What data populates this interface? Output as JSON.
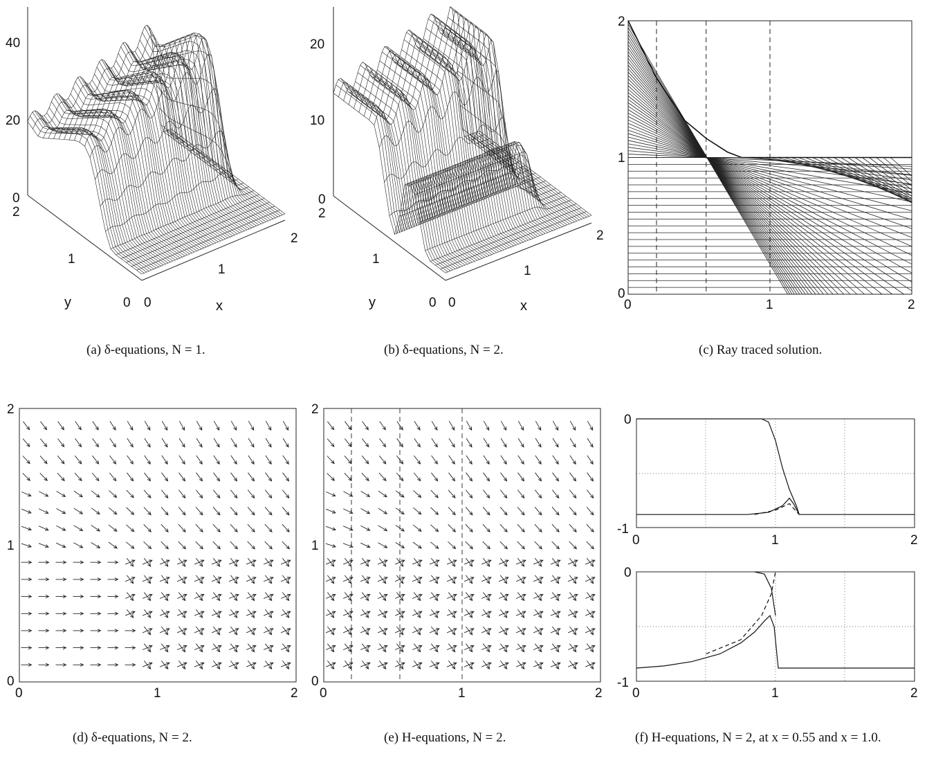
{
  "captions": {
    "a": "(a) δ-equations, N = 1.",
    "b": "(b) δ-equations, N = 2.",
    "c": "(c) Ray traced solution.",
    "d": "(d) δ-equations, N = 2.",
    "e": "(e) H-equations, N = 2.",
    "f": "(f) H-equations, N = 2, at x = 0.55 and x = 1.0."
  },
  "chart_data": [
    {
      "id": "a",
      "type": "surface",
      "xlabel": "x",
      "ylabel": "y",
      "xticks": [
        "0",
        "1",
        "2"
      ],
      "yticks": [
        "0",
        "1",
        "2"
      ],
      "zticks": [
        "0",
        "20",
        "40"
      ],
      "zlim": [
        0,
        45
      ],
      "peak": 38
    },
    {
      "id": "b",
      "type": "surface",
      "xlabel": "x",
      "ylabel": "y",
      "xticks": [
        "0",
        "1",
        "2"
      ],
      "yticks": [
        "0",
        "1",
        "2"
      ],
      "zticks": [
        "0",
        "10",
        "20"
      ],
      "zlim": [
        0,
        25
      ],
      "peak": 22
    },
    {
      "id": "c",
      "type": "line",
      "xlim": [
        0,
        2
      ],
      "ylim": [
        0,
        2
      ],
      "xticks": [
        "0",
        "1",
        "2"
      ],
      "yticks": [
        "0",
        "1",
        "2"
      ],
      "dashed_x": [
        0.2,
        0.55,
        1.0
      ],
      "series": [
        {
          "points": [
            [
              0,
              2
            ],
            [
              0.2,
              1.58
            ],
            [
              0.4,
              1.27
            ],
            [
              0.55,
              1.14
            ],
            [
              0.7,
              1.04
            ],
            [
              0.8,
              1.0
            ],
            [
              2,
              1.0
            ]
          ]
        }
      ]
    },
    {
      "id": "d",
      "type": "quiver",
      "xlim": [
        0,
        2
      ],
      "ylim": [
        0,
        2
      ],
      "xticks": [
        "0",
        "1",
        "2"
      ],
      "yticks": [
        "0",
        "1",
        "2"
      ]
    },
    {
      "id": "e",
      "type": "quiver",
      "xlim": [
        0,
        2
      ],
      "ylim": [
        0,
        2
      ],
      "xticks": [
        "0",
        "1",
        "2"
      ],
      "yticks": [
        "0",
        "1",
        "2"
      ],
      "dashed_x": [
        0.2,
        0.55,
        1.0
      ]
    },
    {
      "id": "f1",
      "type": "line",
      "xlim": [
        0,
        2
      ],
      "ylim": [
        -1,
        0
      ],
      "xticks": [
        "0",
        "1",
        "2"
      ],
      "yticks": [
        "-1",
        "0"
      ],
      "series": [
        {
          "style": "solid",
          "points": [
            [
              0,
              -0.88
            ],
            [
              0.8,
              -0.88
            ],
            [
              0.95,
              -0.86
            ],
            [
              1.05,
              -0.8
            ],
            [
              1.1,
              -0.73
            ],
            [
              1.13,
              -0.78
            ],
            [
              1.17,
              -0.88
            ],
            [
              2,
              -0.88
            ]
          ]
        },
        {
          "style": "solid",
          "points": [
            [
              0,
              0
            ],
            [
              0.9,
              0
            ],
            [
              0.95,
              -0.03
            ],
            [
              1.0,
              -0.2
            ],
            [
              1.05,
              -0.45
            ],
            [
              1.1,
              -0.65
            ],
            [
              1.15,
              -0.8
            ],
            [
              1.17,
              -0.88
            ]
          ]
        },
        {
          "style": "dashed",
          "points": [
            [
              0.85,
              -0.88
            ],
            [
              1.0,
              -0.84
            ],
            [
              1.1,
              -0.78
            ],
            [
              1.17,
              -0.88
            ]
          ]
        }
      ]
    },
    {
      "id": "f2",
      "type": "line",
      "xlim": [
        0,
        2
      ],
      "ylim": [
        -1,
        0
      ],
      "xticks": [
        "0",
        "1",
        "2"
      ],
      "yticks": [
        "-1",
        "0"
      ],
      "series": [
        {
          "style": "solid",
          "points": [
            [
              0,
              -0.88
            ],
            [
              0.2,
              -0.86
            ],
            [
              0.4,
              -0.82
            ],
            [
              0.6,
              -0.75
            ],
            [
              0.75,
              -0.65
            ],
            [
              0.85,
              -0.55
            ],
            [
              0.92,
              -0.45
            ],
            [
              0.96,
              -0.4
            ],
            [
              0.99,
              -0.5
            ],
            [
              1.02,
              -0.88
            ],
            [
              2,
              -0.88
            ]
          ]
        },
        {
          "style": "solid",
          "points": [
            [
              0.85,
              0
            ],
            [
              0.92,
              -0.02
            ],
            [
              0.97,
              -0.15
            ],
            [
              1.0,
              -0.4
            ]
          ]
        },
        {
          "style": "dashed",
          "points": [
            [
              0.5,
              -0.75
            ],
            [
              0.75,
              -0.62
            ],
            [
              0.9,
              -0.4
            ],
            [
              0.97,
              -0.2
            ],
            [
              1.0,
              0
            ]
          ]
        }
      ]
    }
  ]
}
